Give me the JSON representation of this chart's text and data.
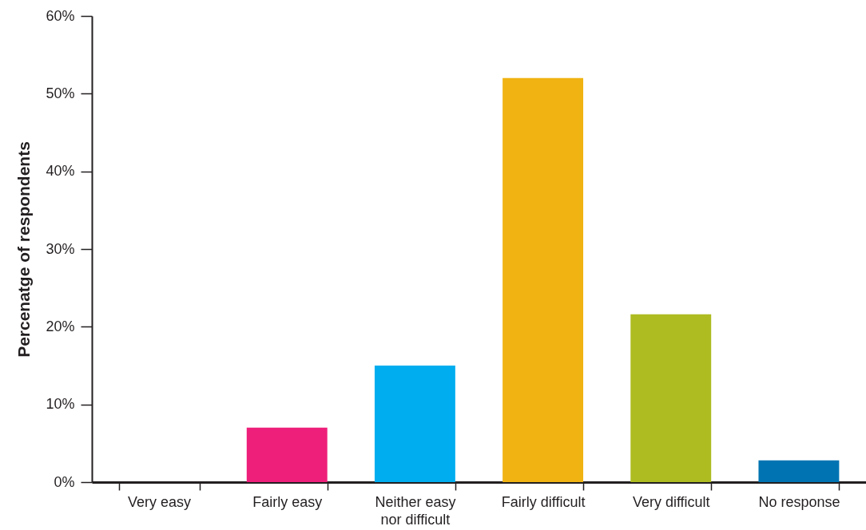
{
  "chart_data": {
    "type": "bar",
    "ylabel": "Percenatge of respondents",
    "categories": [
      "Very easy",
      "Fairly easy",
      "Neither easy nor difficult",
      "Fairly difficult",
      "Very difficult",
      "No response"
    ],
    "values": [
      0,
      7,
      15,
      52,
      21.6,
      2.8
    ],
    "colors": [
      "#ee1f7a",
      "#ee1f7a",
      "#00adee",
      "#f0b312",
      "#aebc21",
      "#0074b2"
    ],
    "ylim": [
      0,
      60
    ],
    "yticks": [
      {
        "value": 0,
        "label": "0%"
      },
      {
        "value": 10,
        "label": "10%"
      },
      {
        "value": 20,
        "label": "20%"
      },
      {
        "value": 30,
        "label": "30%"
      },
      {
        "value": 40,
        "label": "40%"
      },
      {
        "value": 50,
        "label": "50%"
      },
      {
        "value": 60,
        "label": "60%"
      }
    ]
  }
}
